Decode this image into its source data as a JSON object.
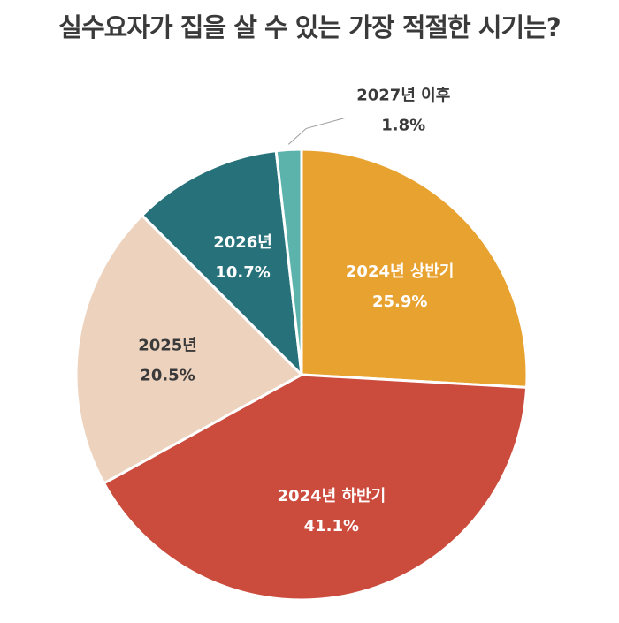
{
  "chart_data": {
    "type": "pie",
    "title": "실수요자가 집을 살 수 있는 가장 적절한 시기는?",
    "slices": [
      {
        "label": "2024년 상반기",
        "value": 25.9,
        "value_label": "25.9%",
        "color": "#E8A230",
        "text_color": "#ffffff"
      },
      {
        "label": "2024년 하반기",
        "value": 41.1,
        "value_label": "41.1%",
        "color": "#CB4B3C",
        "text_color": "#ffffff"
      },
      {
        "label": "2025년",
        "value": 20.5,
        "value_label": "20.5%",
        "color": "#EDD3BE",
        "text_color": "#3a3a3a"
      },
      {
        "label": "2026년",
        "value": 10.7,
        "value_label": "10.7%",
        "color": "#27727A",
        "text_color": "#ffffff"
      },
      {
        "label": "2027년 이후",
        "value": 1.8,
        "value_label": "1.8%",
        "color": "#5BB3AC",
        "text_color": "#3a3a3a",
        "label_outside": true
      }
    ],
    "start_angle_deg": 0,
    "direction": "clockwise",
    "legend": "none"
  }
}
